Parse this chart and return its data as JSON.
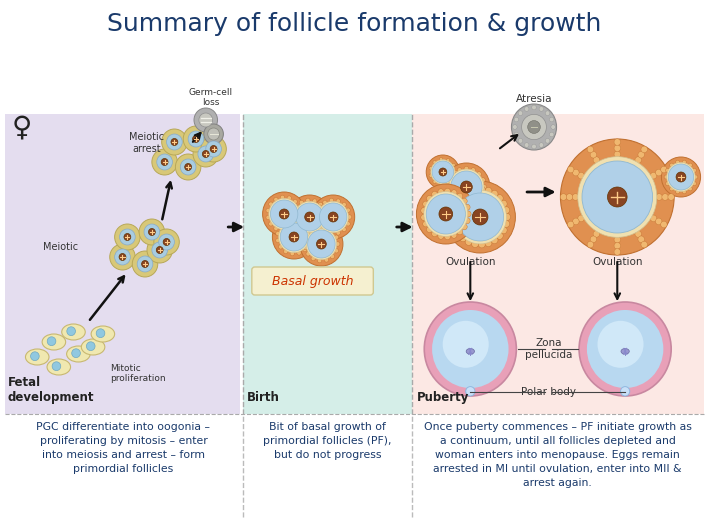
{
  "title": "Summary of follicle formation & growth",
  "title_color": "#1a3a6b",
  "title_fontsize": 18,
  "bg_color": "#ffffff",
  "panel1_color": "#e4ddef",
  "panel2_color": "#d5eee8",
  "panel3_color": "#fce8e4",
  "text1": "PGC differentiate into oogonia –\nproliferating by mitosis – enter\ninto meiosis and arrest – form\nprimordial follicles",
  "text2": "Bit of basal growth of\nprimordial follicles (PF),\nbut do not progress",
  "text3": "Once puberty commences – PF initiate growth as\na continuum, until all follicles depleted and\nwoman enters into menopause. Eggs remain\narrested in MI until ovulation, enter into MII &\narrest again.",
  "text_color": "#1a3a6b",
  "label_fetal": "Fetal\ndevelopment",
  "label_birth": "Birth",
  "label_puberty": "Puberty",
  "basal_growth_label": "Basal growth",
  "atresia_label": "Atresia",
  "meiotic_arrest_label": "Meiotic\narrest",
  "meiotic_label": "Meiotic",
  "mitotic_label": "Mitotic\nproliferation",
  "germ_cell_loss_label": "Germ-cell\nloss",
  "ovulation_label1": "Ovulation",
  "ovulation_label2": "Ovulation",
  "zona_pellucida_label": "Zona\npellucida",
  "polar_body_label": "Polar body",
  "female_symbol": "♀"
}
